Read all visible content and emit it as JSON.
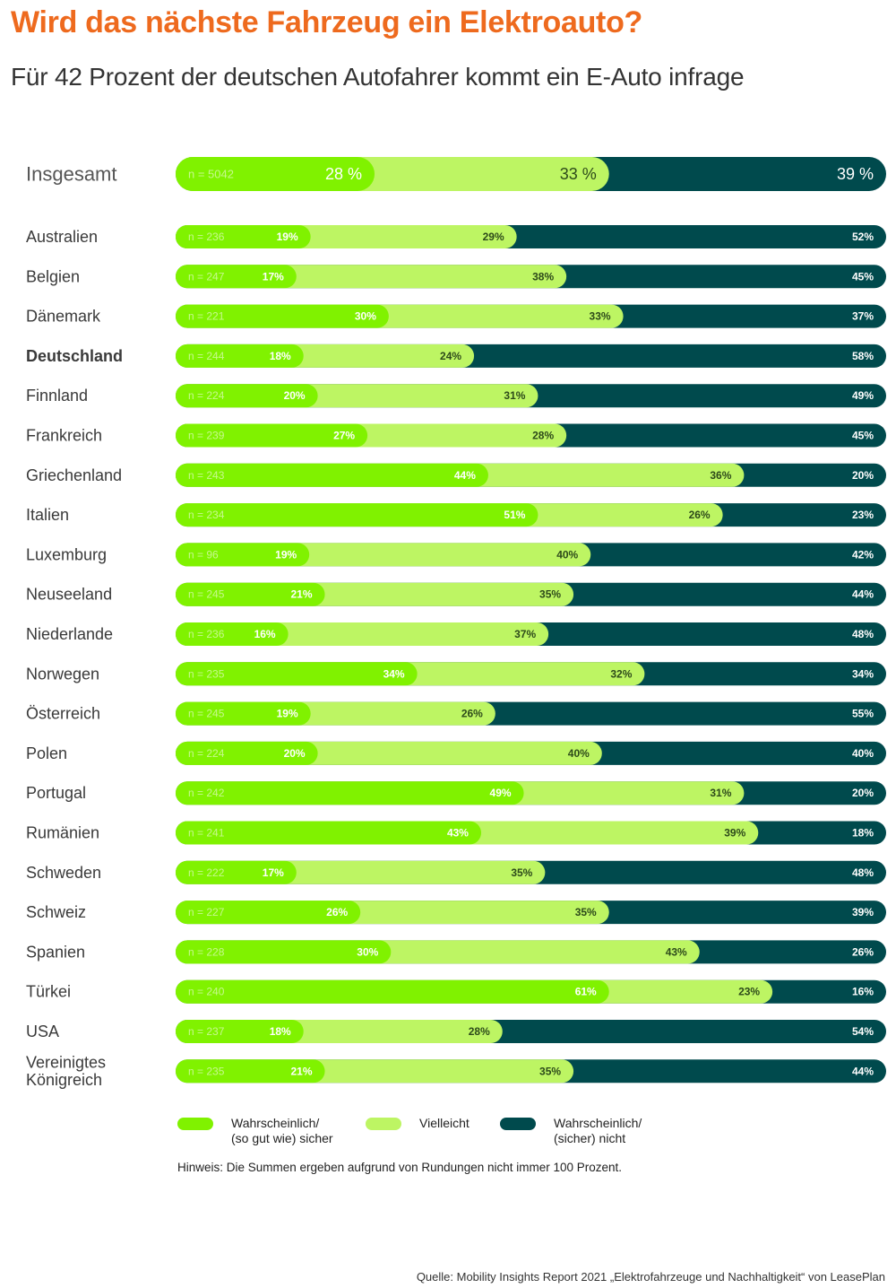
{
  "title": "Wird das nächste Fahrzeug ein Elektroauto?",
  "subtitle": "Für 42 Prozent der deutschen Autofahrer kommt ein E-Auto infrage",
  "colors": {
    "sicher": "#80f200",
    "vielleicht": "#bdf563",
    "nicht": "#004a4d",
    "title": "#ee6a1e"
  },
  "legend": [
    {
      "label": "Wahrscheinlich/\n(so gut wie) sicher",
      "color": "#80f200"
    },
    {
      "label": "Vielleicht",
      "color": "#bdf563"
    },
    {
      "label": "Wahrscheinlich/\n(sicher) nicht",
      "color": "#004a4d"
    }
  ],
  "note": "Hinweis: Die Summen ergeben aufgrund von Rundungen nicht immer 100 Prozent.",
  "source": "Quelle: Mobility Insights Report 2021 „Elektrofahrzeuge und Nachhaltigkeit“ von LeasePlan",
  "chart_data": {
    "type": "bar",
    "orientation": "horizontal",
    "stacked": true,
    "value_suffix": "%",
    "series_names": [
      "Wahrscheinlich/ (so gut wie) sicher",
      "Vielleicht",
      "Wahrscheinlich/ (sicher) nicht"
    ],
    "rows": [
      {
        "label": "Insgesamt",
        "n": "n = 5042",
        "values": [
          28,
          33,
          39
        ],
        "total": true
      },
      {
        "label": "Australien",
        "n": "n = 236",
        "values": [
          19,
          29,
          52
        ]
      },
      {
        "label": "Belgien",
        "n": "n = 247",
        "values": [
          17,
          38,
          45
        ]
      },
      {
        "label": "Dänemark",
        "n": "n = 221",
        "values": [
          30,
          33,
          37
        ]
      },
      {
        "label": "Deutschland",
        "n": "n = 244",
        "values": [
          18,
          24,
          58
        ],
        "bold": true
      },
      {
        "label": "Finnland",
        "n": "n = 224",
        "values": [
          20,
          31,
          49
        ]
      },
      {
        "label": "Frankreich",
        "n": "n = 239",
        "values": [
          27,
          28,
          45
        ]
      },
      {
        "label": "Griechenland",
        "n": "n = 243",
        "values": [
          44,
          36,
          20
        ]
      },
      {
        "label": "Italien",
        "n": "n = 234",
        "values": [
          51,
          26,
          23
        ]
      },
      {
        "label": "Luxemburg",
        "n": "n = 96",
        "values": [
          19,
          40,
          42
        ]
      },
      {
        "label": "Neuseeland",
        "n": "n = 245",
        "values": [
          21,
          35,
          44
        ]
      },
      {
        "label": "Niederlande",
        "n": "n = 236",
        "values": [
          16,
          37,
          48
        ]
      },
      {
        "label": "Norwegen",
        "n": "n = 235",
        "values": [
          34,
          32,
          34
        ]
      },
      {
        "label": "Österreich",
        "n": "n = 245",
        "values": [
          19,
          26,
          55
        ]
      },
      {
        "label": "Polen",
        "n": "n = 224",
        "values": [
          20,
          40,
          40
        ]
      },
      {
        "label": "Portugal",
        "n": "n = 242",
        "values": [
          49,
          31,
          20
        ]
      },
      {
        "label": "Rumänien",
        "n": "n = 241",
        "values": [
          43,
          39,
          18
        ]
      },
      {
        "label": "Schweden",
        "n": "n = 222",
        "values": [
          17,
          35,
          48
        ]
      },
      {
        "label": "Schweiz",
        "n": "n = 227",
        "values": [
          26,
          35,
          39
        ]
      },
      {
        "label": "Spanien",
        "n": "n = 228",
        "values": [
          30,
          43,
          26
        ]
      },
      {
        "label": "Türkei",
        "n": "n = 240",
        "values": [
          61,
          23,
          16
        ]
      },
      {
        "label": "USA",
        "n": "n = 237",
        "values": [
          18,
          28,
          54
        ]
      },
      {
        "label": "Vereinigtes\nKönigreich",
        "n": "n = 235",
        "values": [
          21,
          35,
          44
        ]
      }
    ]
  }
}
